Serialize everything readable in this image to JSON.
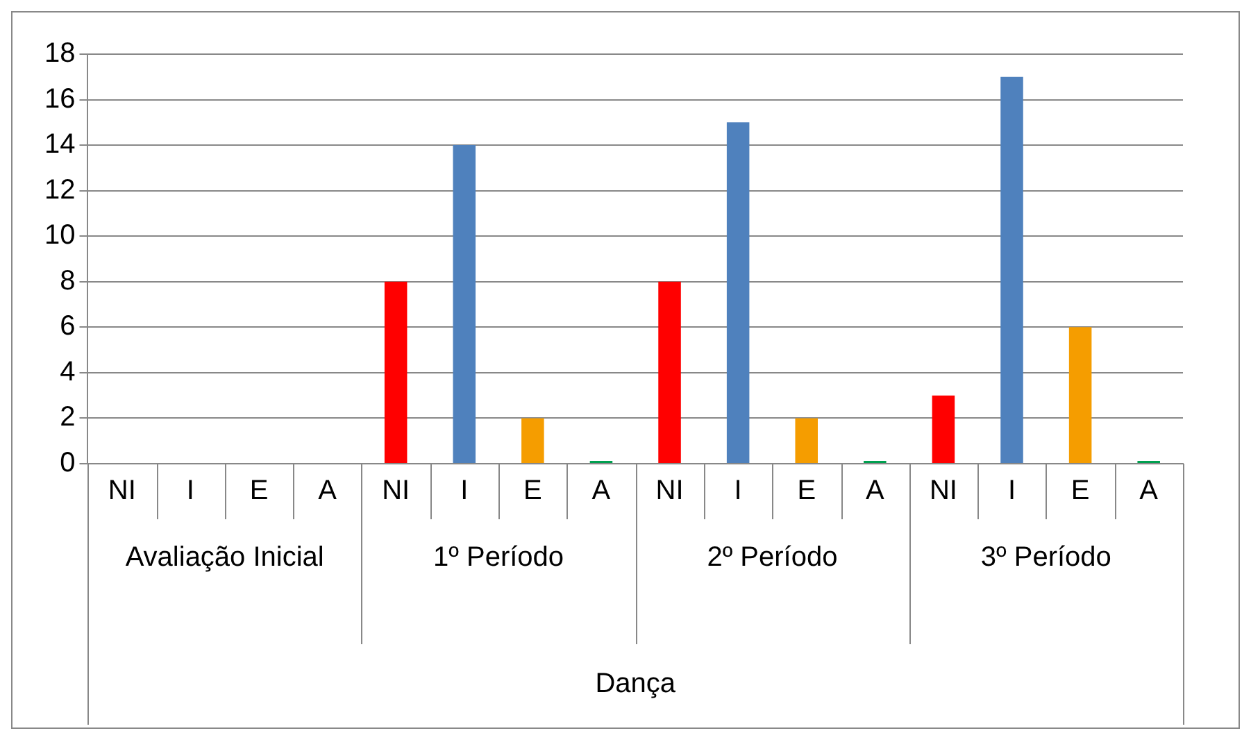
{
  "chart_data": {
    "type": "bar",
    "categories": [
      "NI",
      "I",
      "E",
      "A",
      "NI",
      "I",
      "E",
      "A",
      "NI",
      "I",
      "E",
      "A",
      "NI",
      "I",
      "E",
      "A"
    ],
    "values": [
      null,
      null,
      null,
      null,
      8,
      14,
      2,
      0,
      8,
      15,
      2,
      0,
      3,
      17,
      6,
      0
    ],
    "colors": [
      "#ff0000",
      "#4f81bd",
      "#f59d00",
      "#00a050",
      "#ff0000",
      "#4f81bd",
      "#f59d00",
      "#00a050",
      "#ff0000",
      "#4f81bd",
      "#f59d00",
      "#00a050",
      "#ff0000",
      "#4f81bd",
      "#f59d00",
      "#00a050"
    ],
    "ylim": [
      0,
      18
    ],
    "yticks": [
      0,
      2,
      4,
      6,
      8,
      10,
      12,
      14,
      16,
      18
    ],
    "grid": "y",
    "legend": false,
    "annotations": [
      "Avaliação Inicial",
      "1º Período",
      "2º Período",
      "3º Período",
      "Dança"
    ]
  }
}
